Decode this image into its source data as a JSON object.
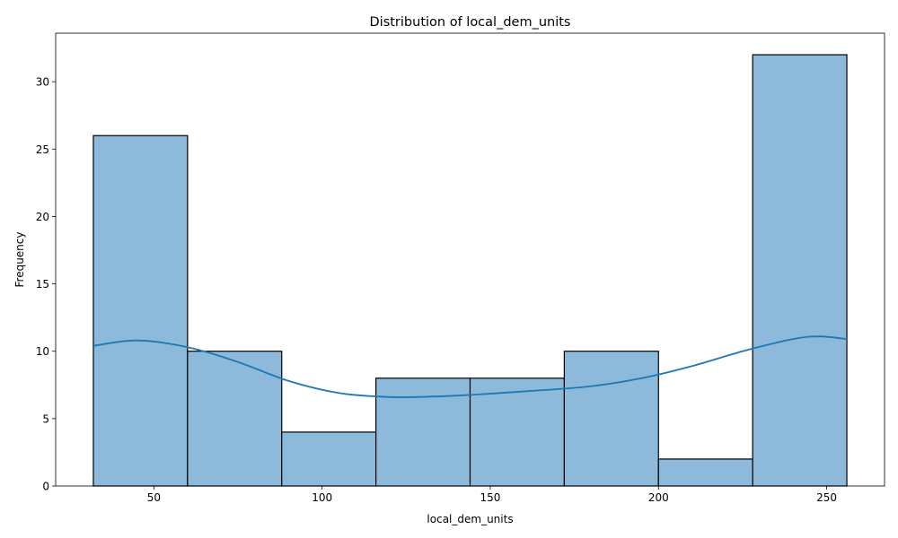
{
  "chart_data": {
    "type": "bar",
    "subtype": "histogram",
    "title": "Distribution of local_dem_units",
    "xlabel": "local_dem_units",
    "ylabel": "Frequency",
    "xlim": [
      20.8,
      267.2
    ],
    "ylim": [
      0,
      33.6
    ],
    "xticks": [
      50,
      100,
      150,
      200,
      250
    ],
    "yticks": [
      0,
      5,
      10,
      15,
      20,
      25,
      30
    ],
    "grid": false,
    "legend": "none",
    "bins": [
      {
        "start": 32,
        "end": 60,
        "count": 26
      },
      {
        "start": 60,
        "end": 88,
        "count": 10
      },
      {
        "start": 88,
        "end": 116,
        "count": 4
      },
      {
        "start": 116,
        "end": 144,
        "count": 8
      },
      {
        "start": 144,
        "end": 172,
        "count": 8
      },
      {
        "start": 172,
        "end": 200,
        "count": 10
      },
      {
        "start": 200,
        "end": 228,
        "count": 2
      },
      {
        "start": 228,
        "end": 256,
        "count": 32
      }
    ],
    "kde": {
      "x": [
        32,
        45,
        60,
        75,
        90,
        105,
        120,
        135,
        150,
        165,
        180,
        195,
        210,
        225,
        240,
        248,
        256
      ],
      "y": [
        10.4,
        10.8,
        10.3,
        9.2,
        7.8,
        6.9,
        6.6,
        6.65,
        6.85,
        7.1,
        7.4,
        8.0,
        8.9,
        10.0,
        10.9,
        11.1,
        10.9
      ]
    },
    "colors": {
      "bar_fill": "#8dbadb",
      "bar_edge": "#000000",
      "kde_line": "#1f77b4"
    }
  }
}
